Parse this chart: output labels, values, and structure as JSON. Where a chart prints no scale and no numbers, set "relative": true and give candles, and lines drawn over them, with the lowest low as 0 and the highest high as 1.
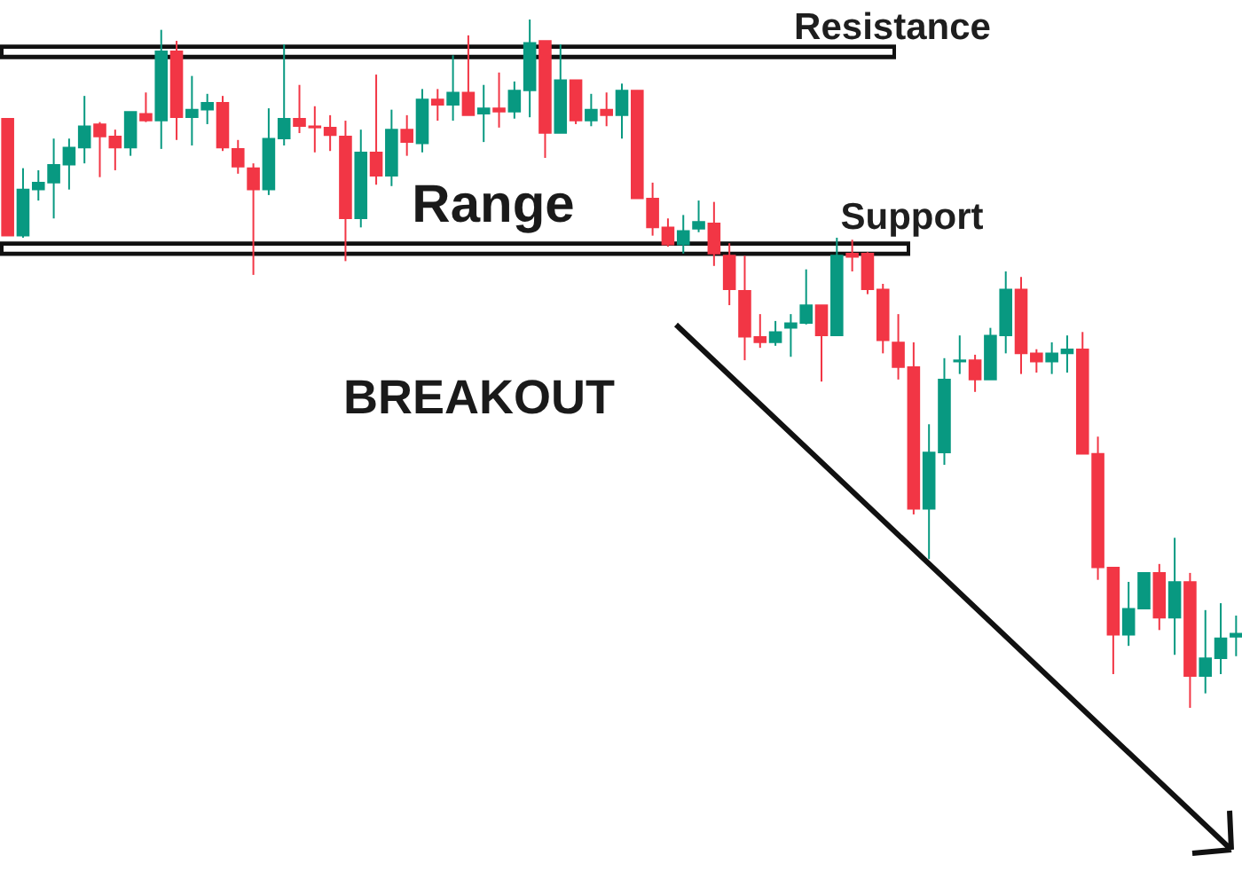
{
  "chart_data": {
    "type": "candlestick",
    "relative": true,
    "categories": [
      null,
      null,
      null,
      null,
      null,
      null,
      null,
      null,
      null,
      null,
      null,
      null,
      null,
      null,
      null,
      null,
      null,
      null,
      null,
      null,
      null,
      null,
      null,
      null,
      null,
      null,
      null,
      null,
      null,
      null,
      null,
      null,
      null,
      null,
      null,
      null,
      null,
      null,
      null,
      null,
      null,
      null,
      null,
      null,
      null,
      null,
      null,
      null,
      null,
      null,
      null,
      null,
      null,
      null,
      null,
      null,
      null,
      null,
      null,
      null,
      null,
      null,
      null,
      null,
      null,
      null,
      null,
      null,
      null,
      null,
      null,
      null,
      null,
      null,
      null,
      null,
      null,
      null,
      null,
      null,
      null
    ],
    "ohlc": [
      [
        0.856,
        0.856,
        0.686,
        0.686
      ],
      [
        0.686,
        0.784,
        0.683,
        0.753
      ],
      [
        0.753,
        0.781,
        0.737,
        0.763
      ],
      [
        0.763,
        0.827,
        0.711,
        0.789
      ],
      [
        0.789,
        0.827,
        0.753,
        0.814
      ],
      [
        0.814,
        0.889,
        0.791,
        0.845
      ],
      [
        0.848,
        0.851,
        0.771,
        0.83
      ],
      [
        0.83,
        0.84,
        0.781,
        0.814
      ],
      [
        0.814,
        0.866,
        0.802,
        0.866
      ],
      [
        0.863,
        0.894,
        0.851,
        0.853
      ],
      [
        0.853,
        0.985,
        0.812,
        0.954
      ],
      [
        0.954,
        0.969,
        0.825,
        0.858
      ],
      [
        0.858,
        0.918,
        0.817,
        0.869
      ],
      [
        0.869,
        0.892,
        0.848,
        0.879
      ],
      [
        0.879,
        0.889,
        0.809,
        0.814
      ],
      [
        0.812,
        0.825,
        0.776,
        0.786
      ],
      [
        0.784,
        0.791,
        0.629,
        0.753
      ],
      [
        0.753,
        0.871,
        0.745,
        0.827
      ],
      [
        0.827,
        0.964,
        0.817,
        0.856
      ],
      [
        0.856,
        0.905,
        0.835,
        0.845
      ],
      [
        0.845,
        0.874,
        0.807,
        0.843
      ],
      [
        0.843,
        0.861,
        0.809,
        0.832
      ],
      [
        0.83,
        0.853,
        0.649,
        0.711
      ],
      [
        0.711,
        0.84,
        0.698,
        0.807
      ],
      [
        0.807,
        0.92,
        0.76,
        0.773
      ],
      [
        0.773,
        0.869,
        0.758,
        0.84
      ],
      [
        0.84,
        0.861,
        0.802,
        0.822
      ],
      [
        0.82,
        0.899,
        0.807,
        0.884
      ],
      [
        0.884,
        0.899,
        0.853,
        0.876
      ],
      [
        0.876,
        0.948,
        0.853,
        0.894
      ],
      [
        0.894,
        0.977,
        0.861,
        0.861
      ],
      [
        0.863,
        0.905,
        0.822,
        0.871
      ],
      [
        0.871,
        0.923,
        0.843,
        0.866
      ],
      [
        0.866,
        0.91,
        0.856,
        0.897
      ],
      [
        0.897,
        1,
        0.858,
        0.966
      ],
      [
        0.969,
        0.969,
        0.799,
        0.835
      ],
      [
        0.835,
        0.964,
        0.835,
        0.912
      ],
      [
        0.912,
        0.912,
        0.848,
        0.853
      ],
      [
        0.853,
        0.892,
        0.845,
        0.869
      ],
      [
        0.869,
        0.894,
        0.845,
        0.861
      ],
      [
        0.861,
        0.907,
        0.827,
        0.897
      ],
      [
        0.897,
        0.897,
        0.74,
        0.74
      ],
      [
        0.74,
        0.763,
        0.686,
        0.698
      ],
      [
        0.698,
        0.711,
        0.67,
        0.673
      ],
      [
        0.673,
        0.716,
        0.66,
        0.693
      ],
      [
        0.696,
        0.737,
        0.691,
        0.706
      ],
      [
        0.704,
        0.735,
        0.642,
        0.66
      ],
      [
        0.657,
        0.675,
        0.585,
        0.608
      ],
      [
        0.606,
        0.657,
        0.505,
        0.539
      ],
      [
        0.539,
        0.572,
        0.523,
        0.531
      ],
      [
        0.531,
        0.562,
        0.526,
        0.546
      ],
      [
        0.552,
        0.572,
        0.51,
        0.559
      ],
      [
        0.559,
        0.637,
        0.557,
        0.585
      ],
      [
        0.585,
        0.585,
        0.474,
        0.541
      ],
      [
        0.541,
        0.683,
        0.541,
        0.657
      ],
      [
        0.66,
        0.68,
        0.634,
        0.655
      ],
      [
        0.66,
        0.662,
        0.601,
        0.608
      ],
      [
        0.608,
        0.616,
        0.515,
        0.534
      ],
      [
        0.531,
        0.572,
        0.477,
        0.495
      ],
      [
        0.495,
        0.531,
        0.281,
        0.289
      ],
      [
        0.289,
        0.412,
        0.216,
        0.371
      ],
      [
        0.371,
        0.508,
        0.353,
        0.477
      ],
      [
        0.503,
        0.541,
        0.485,
        0.505
      ],
      [
        0.505,
        0.513,
        0.459,
        0.477
      ],
      [
        0.477,
        0.552,
        0.477,
        0.541
      ],
      [
        0.541,
        0.634,
        0.515,
        0.608
      ],
      [
        0.608,
        0.626,
        0.485,
        0.515
      ],
      [
        0.515,
        0.521,
        0.487,
        0.503
      ],
      [
        0.503,
        0.531,
        0.485,
        0.515
      ],
      [
        0.515,
        0.541,
        0.487,
        0.521
      ],
      [
        0.521,
        0.546,
        0.369,
        0.369
      ],
      [
        0.369,
        0.394,
        0.186,
        0.204
      ],
      [
        0.204,
        0.204,
        0.049,
        0.106
      ],
      [
        0.106,
        0.183,
        0.09,
        0.144
      ],
      [
        0.144,
        0.196,
        0.144,
        0.196
      ],
      [
        0.196,
        0.209,
        0.113,
        0.131
      ],
      [
        0.131,
        0.247,
        0.077,
        0.183
      ],
      [
        0.183,
        0.196,
        0,
        0.046
      ],
      [
        0.046,
        0.142,
        0.021,
        0.072
      ],
      [
        0.072,
        0.152,
        0.049,
        0.101
      ],
      [
        0.103,
        0.134,
        0.075,
        0.108
      ]
    ],
    "colors": [
      "#f23645",
      "#089981",
      "#089981",
      "#089981",
      "#089981",
      "#089981",
      "#f23645",
      "#f23645",
      "#089981",
      "#f23645",
      "#089981",
      "#f23645",
      "#089981",
      "#089981",
      "#f23645",
      "#f23645",
      "#f23645",
      "#089981",
      "#089981",
      "#f23645",
      "#f23645",
      "#f23645",
      "#f23645",
      "#089981",
      "#f23645",
      "#089981",
      "#f23645",
      "#089981",
      "#f23645",
      "#089981",
      "#f23645",
      "#089981",
      "#f23645",
      "#089981",
      "#089981",
      "#f23645",
      "#089981",
      "#f23645",
      "#089981",
      "#f23645",
      "#089981",
      "#f23645",
      "#f23645",
      "#f23645",
      "#089981",
      "#089981",
      "#f23645",
      "#f23645",
      "#f23645",
      "#f23645",
      "#089981",
      "#089981",
      "#089981",
      "#f23645",
      "#089981",
      "#f23645",
      "#f23645",
      "#f23645",
      "#f23645",
      "#f23645",
      "#089981",
      "#089981",
      "#089981",
      "#f23645",
      "#089981",
      "#089981",
      "#f23645",
      "#f23645",
      "#089981",
      "#089981",
      "#f23645",
      "#f23645",
      "#f23645",
      "#089981",
      "#089981",
      "#f23645",
      "#089981",
      "#f23645",
      "#089981",
      "#089981",
      "#089981"
    ],
    "ref_lines": [
      {
        "axis": "y",
        "value": 0.953,
        "label": "Resistance",
        "color": "#111111"
      },
      {
        "axis": "y",
        "value": 0.667,
        "label": "Support",
        "color": "#111111"
      }
    ],
    "annotations": [
      "Range",
      "BREAKOUT"
    ]
  }
}
